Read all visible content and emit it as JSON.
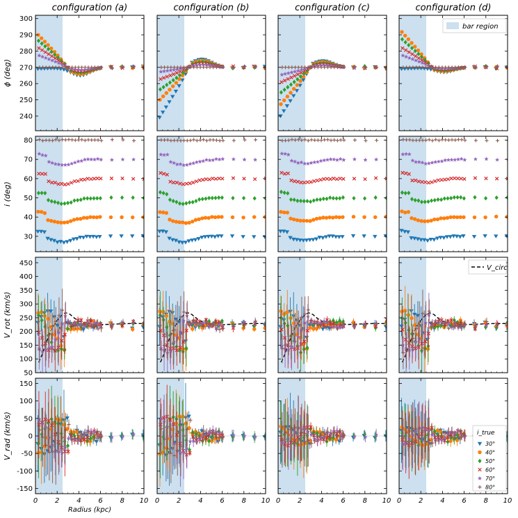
{
  "chart_data": {
    "type": "scatter",
    "figure": "Tilted-ring fit results for four bar configurations",
    "columns": [
      "configuration (a)",
      "configuration (b)",
      "configuration (c)",
      "configuration (d)"
    ],
    "xlabel": "Radius (kpc)",
    "xlim": [
      0,
      10
    ],
    "xticks": [
      0,
      2,
      4,
      6,
      8,
      10
    ],
    "bar_region_end_kpc": [
      2.5,
      2.5,
      2.5,
      2.5
    ],
    "bar_region_label": "bar region",
    "vcirc_label": "V_circ",
    "legend_title": "i_true",
    "series": [
      {
        "name": "30°",
        "inc": 30,
        "color": "#1f77b4",
        "marker": "tri_down"
      },
      {
        "name": "40°",
        "inc": 40,
        "color": "#ff7f0e",
        "marker": "circle"
      },
      {
        "name": "50°",
        "inc": 50,
        "color": "#2ca02c",
        "marker": "diamond"
      },
      {
        "name": "60°",
        "inc": 60,
        "color": "#d62728",
        "marker": "x"
      },
      {
        "name": "70°",
        "inc": 70,
        "color": "#9467bd",
        "marker": "star"
      },
      {
        "name": "80°",
        "inc": 80,
        "color": "#8c564b",
        "marker": "plus"
      }
    ],
    "rows": [
      {
        "key": "phi",
        "ylabel": "ϕ (deg)",
        "ylim": [
          231,
          302
        ],
        "yticks": [
          240,
          250,
          260,
          270,
          280,
          290,
          300
        ]
      },
      {
        "key": "inc",
        "ylabel": "i (deg)",
        "ylim": [
          22,
          82
        ],
        "yticks": [
          30,
          40,
          50,
          60,
          70,
          80
        ]
      },
      {
        "key": "vrot",
        "ylabel": "V_rot (km/s)",
        "ylim": [
          50,
          470
        ],
        "yticks": [
          50,
          100,
          150,
          200,
          250,
          300,
          350,
          400,
          450
        ]
      },
      {
        "key": "vrad",
        "ylabel": "V_rad (km/s)",
        "ylim": [
          -165,
          165
        ],
        "yticks": [
          -150,
          -100,
          -50,
          0,
          50,
          100,
          150
        ]
      }
    ],
    "vcirc_curve": {
      "r": [
        0.3,
        0.6,
        1.0,
        1.5,
        2.0,
        2.5,
        2.8,
        3.2,
        3.6,
        4.0,
        4.5,
        5.0,
        5.5,
        6.0,
        7.0,
        8.0,
        9.0,
        10.0
      ],
      "v": [
        88,
        115,
        160,
        210,
        240,
        262,
        268,
        262,
        248,
        238,
        232,
        228,
        226,
        225,
        226,
        228,
        229,
        229
      ]
    },
    "params": {
      "phi_amp": {
        "a": [
          -1,
          22,
          18,
          13,
          8,
          0
        ],
        "b": [
          -34,
          -22,
          -15,
          -8,
          -3,
          0
        ],
        "c": [
          -33,
          -25,
          -17,
          -10,
          -5,
          0
        ],
        "d": [
          -1,
          24,
          19,
          13,
          8,
          0
        ]
      },
      "phi_bump": {
        "a": -5,
        "b": 5,
        "c": 4,
        "d": -3
      },
      "inc_dip": {
        "a": 3,
        "b": 3,
        "c": 2,
        "d": 2
      },
      "vrad_dip": {
        "a": -80,
        "b": -90,
        "c": 40,
        "d": 40
      }
    }
  }
}
